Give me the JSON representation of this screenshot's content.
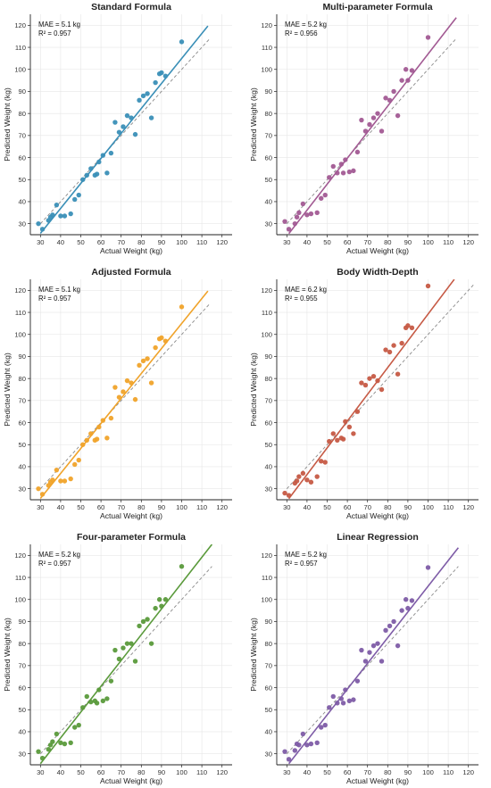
{
  "chart_data": [
    {
      "type": "scatter",
      "title": "Standard Formula",
      "xlabel": "Actual Weight (kg)",
      "ylabel": "Predicted Weight (kg)",
      "xlim": [
        25,
        125
      ],
      "ylim": [
        25,
        125
      ],
      "xticks": [
        30,
        40,
        50,
        60,
        70,
        80,
        90,
        100,
        110,
        120
      ],
      "yticks": [
        30,
        40,
        50,
        60,
        70,
        80,
        90,
        100,
        110,
        120
      ],
      "grid": true,
      "annotation": [
        "MAE = 5.1 kg",
        "R² = 0.957"
      ],
      "color": "#3a8fb7",
      "fit_line": {
        "x": [
          30,
          113
        ],
        "y": [
          25.6,
          119.7
        ]
      },
      "identity_line": {
        "x": [
          30,
          114
        ],
        "y": [
          30,
          114
        ]
      },
      "points": {
        "x": [
          29,
          31,
          34,
          35,
          36,
          38,
          40,
          42,
          45,
          47,
          49,
          51,
          53,
          55,
          57,
          58,
          59,
          61,
          63,
          65,
          67,
          69,
          71,
          73,
          75,
          77,
          79,
          81,
          83,
          85,
          87,
          89,
          90,
          92,
          100
        ],
        "y": [
          30,
          27.5,
          31.5,
          33,
          34,
          38.5,
          33.5,
          33.5,
          34.5,
          41,
          43,
          50,
          52,
          55,
          52,
          52.5,
          58,
          61,
          53,
          62,
          76,
          71.5,
          74,
          79,
          78,
          70.5,
          86,
          88,
          89,
          78,
          94,
          98,
          98.5,
          97,
          112.5
        ]
      }
    },
    {
      "type": "scatter",
      "title": "Multi-parameter Formula",
      "xlabel": "Actual Weight (kg)",
      "ylabel": "Predicted Weight (kg)",
      "xlim": [
        25,
        125
      ],
      "ylim": [
        25,
        125
      ],
      "xticks": [
        30,
        40,
        50,
        60,
        70,
        80,
        90,
        100,
        110,
        120
      ],
      "yticks": [
        30,
        40,
        50,
        60,
        70,
        80,
        90,
        100,
        110,
        120
      ],
      "grid": true,
      "annotation": [
        "MAE = 5.2 kg",
        "R² = 0.956"
      ],
      "color": "#a25a93",
      "fit_line": {
        "x": [
          31,
          114
        ],
        "y": [
          25.5,
          123.5
        ]
      },
      "identity_line": {
        "x": [
          30,
          114
        ],
        "y": [
          30,
          114
        ]
      },
      "points": {
        "x": [
          29,
          31,
          34,
          35,
          36,
          38,
          40,
          42,
          45,
          47,
          49,
          51,
          53,
          55,
          57,
          58,
          59,
          61,
          63,
          65,
          67,
          69,
          71,
          73,
          75,
          77,
          79,
          81,
          83,
          85,
          87,
          89,
          90,
          92,
          100
        ],
        "y": [
          31,
          27.5,
          30,
          33,
          35,
          39,
          34,
          34.5,
          35,
          41.5,
          43,
          51,
          56,
          53,
          57,
          53,
          59,
          53.5,
          54,
          62.5,
          77,
          72,
          75,
          78,
          80,
          72,
          87,
          86,
          90,
          79,
          95,
          100,
          95,
          99.5,
          114.5
        ]
      }
    },
    {
      "type": "scatter",
      "title": "Adjusted Formula",
      "xlabel": "Actual Weight (kg)",
      "ylabel": "Predicted Weight (kg)",
      "xlim": [
        25,
        125
      ],
      "ylim": [
        25,
        125
      ],
      "xticks": [
        30,
        40,
        50,
        60,
        70,
        80,
        90,
        100,
        110,
        120
      ],
      "yticks": [
        30,
        40,
        50,
        60,
        70,
        80,
        90,
        100,
        110,
        120
      ],
      "grid": true,
      "annotation": [
        "MAE = 5.1 kg",
        "R² = 0.957"
      ],
      "color": "#f0a32a",
      "fit_line": {
        "x": [
          30,
          113
        ],
        "y": [
          25.6,
          119.7
        ]
      },
      "identity_line": {
        "x": [
          30,
          114
        ],
        "y": [
          30,
          114
        ]
      },
      "points": {
        "x": [
          29,
          31,
          34,
          35,
          36,
          38,
          40,
          42,
          45,
          47,
          49,
          51,
          53,
          55,
          57,
          58,
          59,
          61,
          63,
          65,
          67,
          69,
          71,
          73,
          75,
          77,
          79,
          81,
          83,
          85,
          87,
          89,
          90,
          92,
          100
        ],
        "y": [
          30,
          27.5,
          31.5,
          33,
          34,
          38.5,
          33.5,
          33.5,
          34.5,
          41,
          43,
          50,
          52,
          55,
          52,
          52.5,
          58,
          61,
          53,
          62,
          76,
          71.5,
          74,
          79,
          78,
          70.5,
          86,
          88,
          89,
          78,
          94,
          98,
          98.5,
          97,
          112.5
        ]
      }
    },
    {
      "type": "scatter",
      "title": "Body Width-Depth",
      "xlabel": "Actual Weight (kg)",
      "ylabel": "Predicted Weight (kg)",
      "xlim": [
        25,
        125
      ],
      "ylim": [
        25,
        125
      ],
      "xticks": [
        30,
        40,
        50,
        60,
        70,
        80,
        90,
        100,
        110,
        120
      ],
      "yticks": [
        30,
        40,
        50,
        60,
        70,
        80,
        90,
        100,
        110,
        120
      ],
      "grid": true,
      "annotation": [
        "MAE = 6.2 kg",
        "R² = 0.955"
      ],
      "color": "#c65a45",
      "fit_line": {
        "x": [
          31,
          113
        ],
        "y": [
          25.5,
          125
        ]
      },
      "identity_line": {
        "x": [
          30,
          123
        ],
        "y": [
          30,
          123
        ]
      },
      "points": {
        "x": [
          29,
          31,
          34,
          35,
          36,
          38,
          40,
          42,
          45,
          47,
          49,
          51,
          53,
          55,
          57,
          58,
          59,
          61,
          63,
          65,
          67,
          69,
          71,
          73,
          75,
          77,
          79,
          81,
          83,
          85,
          87,
          89,
          90,
          92,
          100
        ],
        "y": [
          28,
          27,
          32.5,
          33.5,
          35.5,
          37,
          34,
          33,
          35.5,
          42.5,
          42,
          51.5,
          55,
          52,
          53,
          52.5,
          60.5,
          58,
          55,
          65,
          78,
          77,
          80,
          81,
          79,
          75,
          93,
          92,
          95,
          82,
          96,
          103,
          104,
          103,
          122
        ]
      }
    },
    {
      "type": "scatter",
      "title": "Four-parameter Formula",
      "xlabel": "Actual Weight (kg)",
      "ylabel": "Predicted Weight (kg)",
      "xlim": [
        25,
        125
      ],
      "ylim": [
        25,
        125
      ],
      "xticks": [
        30,
        40,
        50,
        60,
        70,
        80,
        90,
        100,
        110,
        120
      ],
      "yticks": [
        30,
        40,
        50,
        60,
        70,
        80,
        90,
        100,
        110,
        120
      ],
      "grid": true,
      "annotation": [
        "MAE = 5.2 kg",
        "R² = 0.957"
      ],
      "color": "#5a9a3b",
      "fit_line": {
        "x": [
          30,
          115
        ],
        "y": [
          25.5,
          125
        ]
      },
      "identity_line": {
        "x": [
          30,
          115
        ],
        "y": [
          30,
          115
        ]
      },
      "points": {
        "x": [
          29,
          31,
          34,
          35,
          36,
          38,
          40,
          42,
          45,
          47,
          49,
          51,
          53,
          55,
          57,
          58,
          59,
          61,
          63,
          65,
          67,
          69,
          71,
          73,
          75,
          77,
          79,
          81,
          83,
          85,
          87,
          89,
          90,
          92,
          100
        ],
        "y": [
          31,
          28,
          32,
          34,
          35.5,
          39,
          35,
          34.5,
          35,
          42,
          43,
          51,
          56,
          53.5,
          54,
          53,
          59,
          54,
          55,
          63,
          77,
          73,
          78,
          80,
          80,
          72,
          88,
          90,
          91,
          80,
          96,
          100,
          97,
          100,
          115
        ]
      }
    },
    {
      "type": "scatter",
      "title": "Linear Regression",
      "xlabel": "Actual Weight (kg)",
      "ylabel": "Predicted Weight (kg)",
      "xlim": [
        25,
        125
      ],
      "ylim": [
        25,
        125
      ],
      "xticks": [
        30,
        40,
        50,
        60,
        70,
        80,
        90,
        100,
        110,
        120
      ],
      "yticks": [
        30,
        40,
        50,
        60,
        70,
        80,
        90,
        100,
        110,
        120
      ],
      "grid": true,
      "annotation": [
        "MAE = 5.2 kg",
        "R² = 0.957"
      ],
      "color": "#7e5ca7",
      "fit_line": {
        "x": [
          31,
          115
        ],
        "y": [
          25.5,
          123.5
        ]
      },
      "identity_line": {
        "x": [
          30,
          115
        ],
        "y": [
          30,
          115
        ]
      },
      "points": {
        "x": [
          29,
          31,
          34,
          35,
          36,
          38,
          40,
          42,
          45,
          47,
          49,
          51,
          53,
          55,
          57,
          58,
          59,
          61,
          63,
          65,
          67,
          69,
          71,
          73,
          75,
          77,
          79,
          81,
          83,
          85,
          87,
          89,
          90,
          92,
          100
        ],
        "y": [
          31,
          27.5,
          31.5,
          34.5,
          34,
          39,
          34,
          34.5,
          35,
          42,
          43,
          51,
          56,
          53,
          55,
          53,
          59,
          54,
          54.5,
          63,
          77,
          72,
          76,
          79,
          80,
          72,
          86,
          88,
          90,
          79,
          95,
          100,
          96,
          99.5,
          114.5
        ]
      }
    }
  ]
}
